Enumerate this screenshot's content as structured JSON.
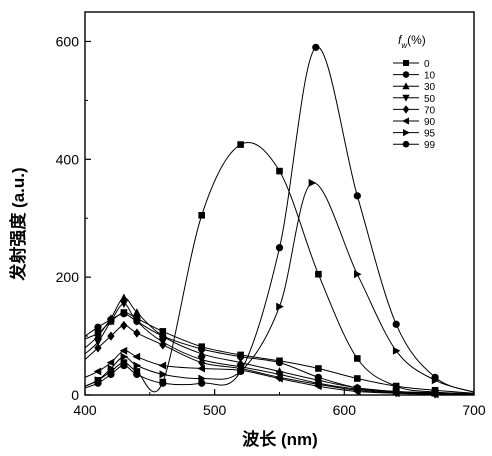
{
  "chart_data": {
    "type": "line",
    "xlabel": "波长 (nm)",
    "ylabel": "发射强度 (a.u.)",
    "xlim": [
      400,
      700
    ],
    "ylim": [
      0,
      650
    ],
    "xticks": [
      400,
      500,
      600,
      700
    ],
    "yticks": [
      0,
      200,
      400,
      600
    ],
    "grid": false,
    "legend": {
      "title": "f_w(%)",
      "title_main": "f",
      "title_sub": "w",
      "title_rest": "(%)",
      "placement": "top-right"
    },
    "colors": {
      "series": "#000000",
      "axis": "#000000",
      "background": "#ffffff"
    },
    "series": [
      {
        "name": "0",
        "marker": "square",
        "points": [
          [
            400,
            95
          ],
          [
            410,
            105
          ],
          [
            420,
            125
          ],
          [
            430,
            140
          ],
          [
            440,
            130
          ],
          [
            460,
            108
          ],
          [
            490,
            82
          ],
          [
            520,
            68
          ],
          [
            550,
            58
          ],
          [
            580,
            45
          ],
          [
            610,
            28
          ],
          [
            640,
            15
          ],
          [
            670,
            8
          ],
          [
            700,
            3
          ]
        ]
      },
      {
        "name": "10",
        "marker": "circle",
        "points": [
          [
            400,
            100
          ],
          [
            410,
            115
          ],
          [
            420,
            128
          ],
          [
            430,
            138
          ],
          [
            440,
            125
          ],
          [
            460,
            100
          ],
          [
            490,
            78
          ],
          [
            520,
            65
          ],
          [
            550,
            55
          ],
          [
            580,
            30
          ],
          [
            610,
            12
          ],
          [
            640,
            6
          ],
          [
            670,
            4
          ],
          [
            700,
            2
          ]
        ]
      },
      {
        "name": "30",
        "marker": "triangle-up",
        "points": [
          [
            400,
            80
          ],
          [
            410,
            100
          ],
          [
            420,
            130
          ],
          [
            430,
            165
          ],
          [
            440,
            140
          ],
          [
            460,
            100
          ],
          [
            490,
            70
          ],
          [
            520,
            55
          ],
          [
            550,
            40
          ],
          [
            580,
            25
          ],
          [
            610,
            12
          ],
          [
            640,
            6
          ],
          [
            670,
            3
          ],
          [
            700,
            1
          ]
        ]
      },
      {
        "name": "50",
        "marker": "triangle-down",
        "points": [
          [
            400,
            70
          ],
          [
            410,
            90
          ],
          [
            420,
            125
          ],
          [
            430,
            155
          ],
          [
            440,
            125
          ],
          [
            460,
            90
          ],
          [
            490,
            60
          ],
          [
            520,
            48
          ],
          [
            550,
            35
          ],
          [
            580,
            20
          ],
          [
            610,
            10
          ],
          [
            640,
            5
          ],
          [
            670,
            2
          ],
          [
            700,
            1
          ]
        ]
      },
      {
        "name": "70",
        "marker": "diamond",
        "points": [
          [
            400,
            60
          ],
          [
            410,
            80
          ],
          [
            420,
            100
          ],
          [
            430,
            118
          ],
          [
            440,
            105
          ],
          [
            460,
            85
          ],
          [
            490,
            55
          ],
          [
            520,
            45
          ],
          [
            550,
            30
          ],
          [
            580,
            18
          ],
          [
            610,
            8
          ],
          [
            640,
            4
          ],
          [
            670,
            2
          ],
          [
            700,
            1
          ]
        ]
      },
      {
        "name": "90",
        "marker": "triangle-left",
        "points": [
          [
            400,
            30
          ],
          [
            410,
            40
          ],
          [
            420,
            55
          ],
          [
            430,
            75
          ],
          [
            440,
            65
          ],
          [
            460,
            50
          ],
          [
            490,
            45
          ],
          [
            520,
            42
          ],
          [
            550,
            28
          ],
          [
            580,
            15
          ],
          [
            610,
            6
          ],
          [
            640,
            3
          ],
          [
            670,
            1
          ],
          [
            700,
            0
          ]
        ]
      },
      {
        "name": "95",
        "marker": "triangle-right",
        "points": [
          [
            400,
            15
          ],
          [
            410,
            25
          ],
          [
            420,
            45
          ],
          [
            430,
            65
          ],
          [
            440,
            50
          ],
          [
            460,
            35
          ],
          [
            490,
            28
          ],
          [
            520,
            40
          ],
          [
            550,
            150
          ],
          [
            575,
            360
          ],
          [
            610,
            205
          ],
          [
            640,
            75
          ],
          [
            670,
            25
          ],
          [
            700,
            5
          ]
        ]
      },
      {
        "name": "99",
        "marker": "circle",
        "points": [
          [
            400,
            12
          ],
          [
            410,
            20
          ],
          [
            420,
            35
          ],
          [
            430,
            50
          ],
          [
            440,
            35
          ],
          [
            460,
            20
          ],
          [
            490,
            20
          ],
          [
            520,
            40
          ],
          [
            550,
            250
          ],
          [
            578,
            590
          ],
          [
            610,
            338
          ],
          [
            640,
            120
          ],
          [
            670,
            30
          ],
          [
            700,
            5
          ]
        ]
      },
      {
        "name": "",
        "marker": "square",
        "points": [
          [
            400,
            15
          ],
          [
            410,
            25
          ],
          [
            420,
            40
          ],
          [
            430,
            55
          ],
          [
            440,
            40
          ],
          [
            460,
            22
          ],
          [
            490,
            305
          ],
          [
            520,
            425
          ],
          [
            550,
            380
          ],
          [
            580,
            205
          ],
          [
            610,
            62
          ],
          [
            640,
            15
          ],
          [
            670,
            5
          ],
          [
            700,
            2
          ]
        ]
      }
    ]
  }
}
